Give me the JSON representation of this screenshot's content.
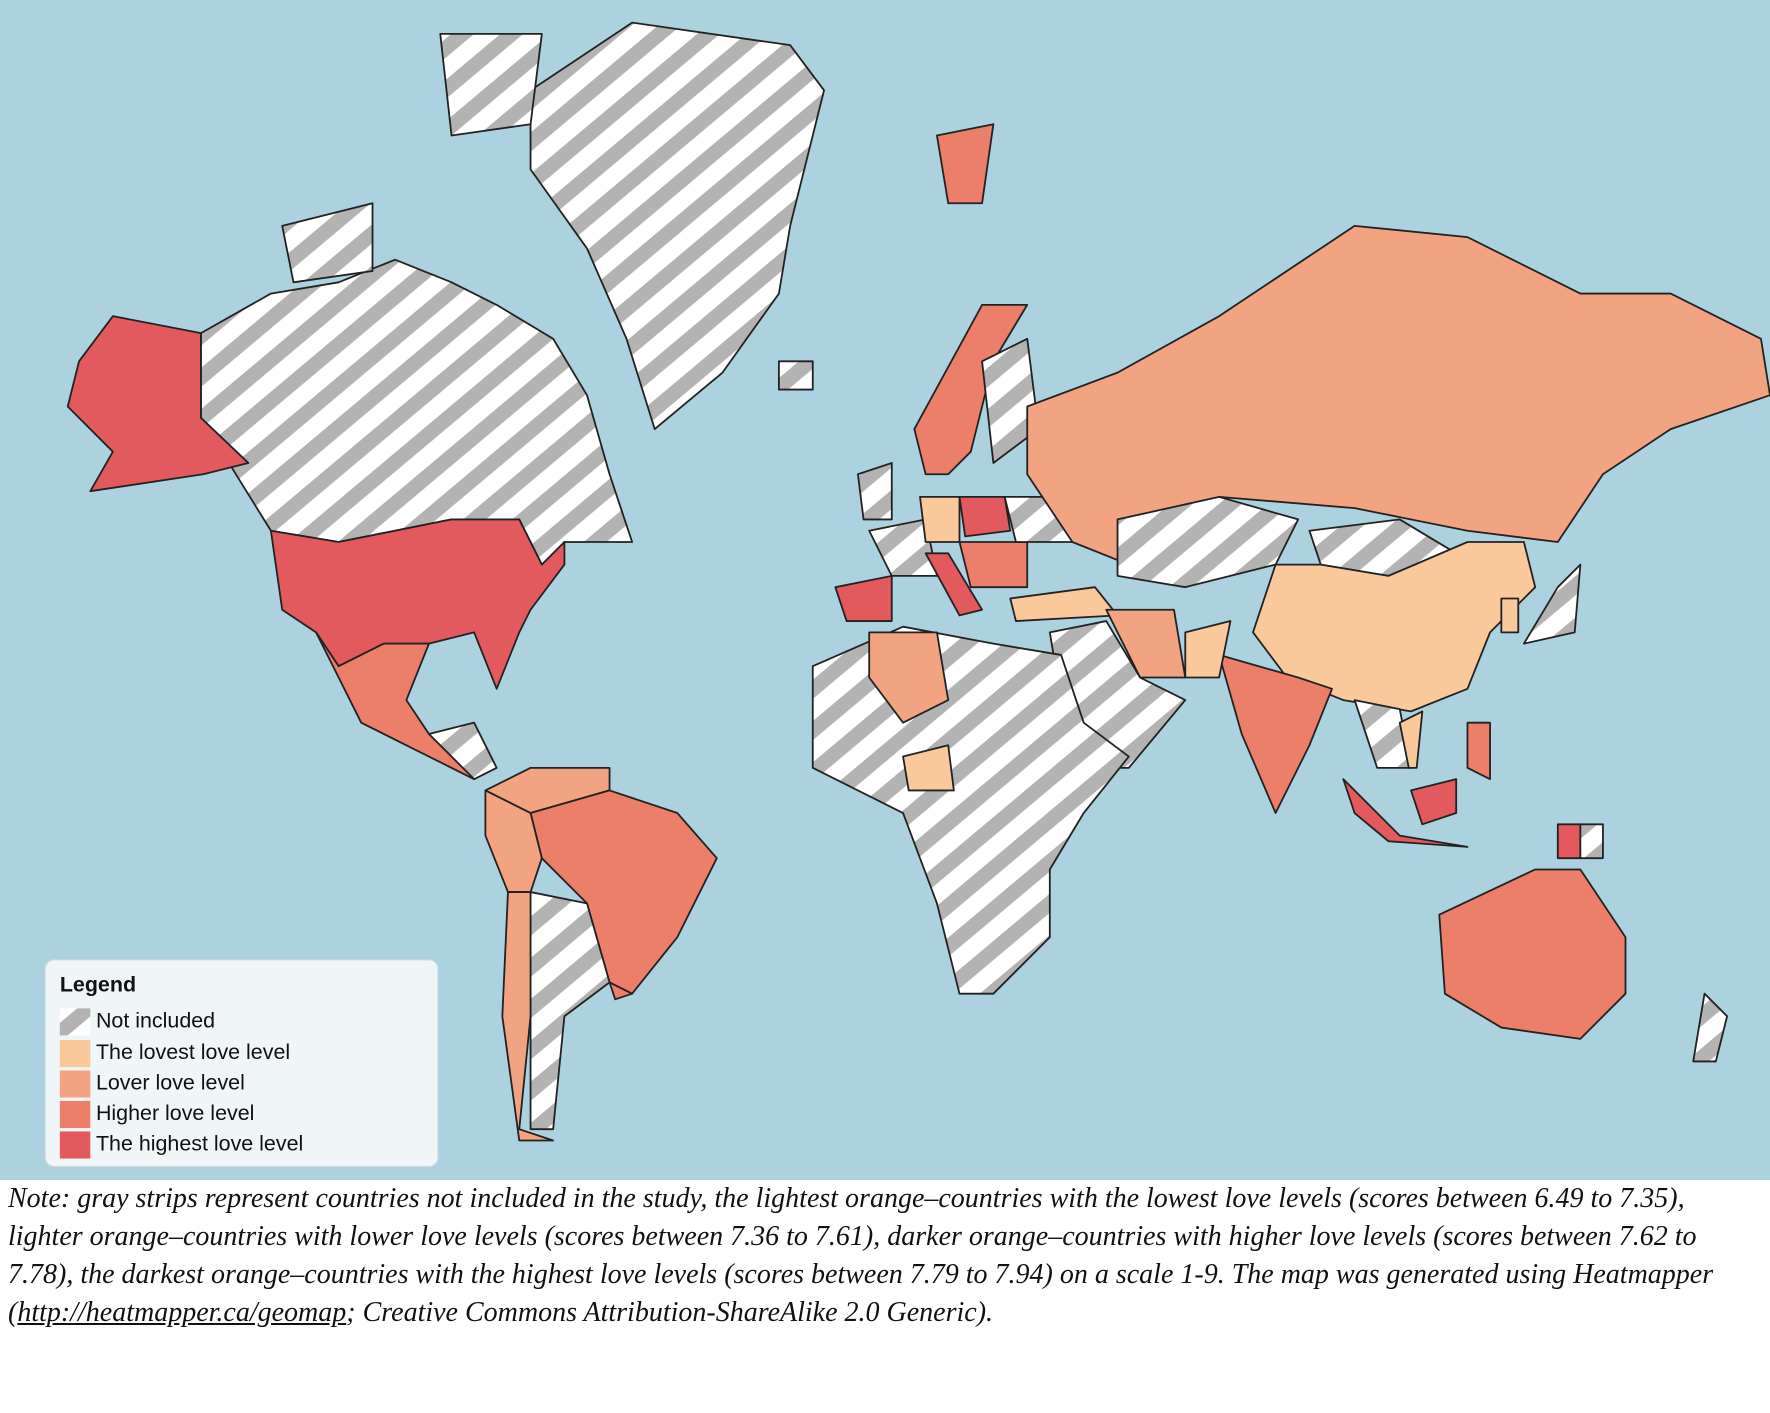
{
  "legend": {
    "title": "Legend",
    "items": [
      {
        "label": "Not included",
        "color": "#b3b3b3"
      },
      {
        "label": "The lovest love level",
        "color": "#f9c99b"
      },
      {
        "label": "Lover love level",
        "color": "#f2a482"
      },
      {
        "label": "Higher love level",
        "color": "#ec7f6a"
      },
      {
        "label": "The highest love level",
        "color": "#e35a5e"
      }
    ]
  },
  "note": {
    "text_before": "Note: gray strips represent countries not included in the study, the lightest orange–countries with the lowest love levels (scores between 6.49 to 7.35), lighter orange–countries with lower love levels (scores between 7.36 to 7.61), darker orange–countries with higher love levels (scores between 7.62 to 7.78), the darkest orange–countries with the highest love levels (scores between 7.79 to 7.94) on a scale 1-9. The map was generated using Heatmapper (",
    "link": "http://heatmapper.ca/geomap",
    "text_after": "; Creative Commons Attribution-ShareAlike 2.0 Generic)."
  }
}
